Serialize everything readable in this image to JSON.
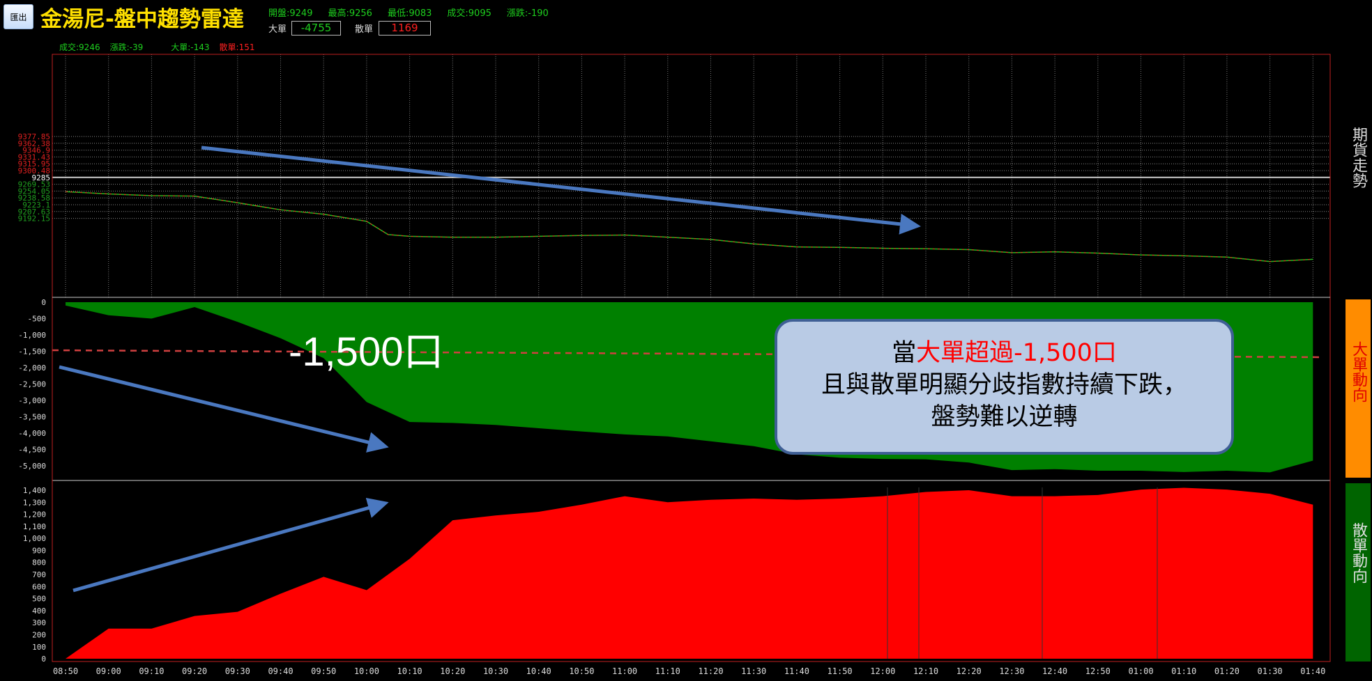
{
  "header": {
    "export_label": "匯出",
    "title": "金湯尼-盤中趨勢雷達",
    "stats": [
      "開盤:9249",
      "最高:9256",
      "最低:9083",
      "成交:9095",
      "漲跌:-190"
    ],
    "big_label": "大單",
    "big_value": "-4755",
    "retail_label": "散單",
    "retail_value": "1169"
  },
  "subheader": {
    "trade": "成交:9246",
    "change": "漲跌:-39",
    "big": "大單:-143",
    "retail": "散單:151"
  },
  "side_labels": {
    "price": "期貨走勢",
    "big": "大單動向",
    "retail": "散單動向"
  },
  "annotation": {
    "line1_prefix": "當",
    "line1_highlight": "大單超過-1,500口",
    "line2": "且與散單明顯分歧指數持續下跌，",
    "line3": "盤勢難以逆轉",
    "threshold_label": "-1,500口"
  },
  "colors": {
    "price_up": "#ff2020",
    "price_down": "#20c020",
    "big": "#008000",
    "retail": "#ff0000",
    "arrow": "#4a78c0",
    "threshold": "#d04040",
    "orange": "#ff8c00",
    "green_panel": "#006400"
  },
  "chart_data": [
    {
      "type": "line",
      "panel": "price",
      "ref_level": "9285",
      "tick_labels": [
        "9377.85",
        "9362.38",
        "9346.9",
        "9331.43",
        "9315.95",
        "9300.48",
        "9285",
        "9269.53",
        "9254.05",
        "9238.58",
        "9223.1",
        "9207.63",
        "9192.15"
      ],
      "x": [
        "08:50",
        "09:00",
        "09:10",
        "09:20",
        "09:30",
        "09:40",
        "09:50",
        "10:00",
        "10:05",
        "10:10",
        "10:20",
        "10:30",
        "10:40",
        "10:50",
        "11:00",
        "11:10",
        "11:20",
        "11:30",
        "11:40",
        "11:50",
        "12:00",
        "12:10",
        "12:20",
        "12:30",
        "12:40",
        "12:50",
        "01:00",
        "01:10",
        "01:20",
        "01:30",
        "01:40"
      ],
      "values": [
        9253,
        9248,
        9244,
        9243,
        9228,
        9212,
        9202,
        9186,
        9156,
        9152,
        9150,
        9150,
        9152,
        9154,
        9155,
        9150,
        9145,
        9135,
        9128,
        9127,
        9125,
        9124,
        9122,
        9115,
        9117,
        9114,
        9110,
        9108,
        9105,
        9095,
        9100
      ]
    },
    {
      "type": "area",
      "panel": "big",
      "tick_labels": [
        "0",
        "-500",
        "-1,000",
        "-1,500",
        "-2,000",
        "-2,500",
        "-3,000",
        "-3,500",
        "-4,000",
        "-4,500",
        "-5,000"
      ],
      "ylim": [
        -5300,
        0
      ],
      "threshold": -1500,
      "x": [
        "08:50",
        "09:00",
        "09:10",
        "09:20",
        "09:30",
        "09:40",
        "09:50",
        "10:00",
        "10:10",
        "10:20",
        "10:30",
        "10:40",
        "10:50",
        "11:00",
        "11:10",
        "11:20",
        "11:30",
        "11:40",
        "11:50",
        "12:00",
        "12:10",
        "12:20",
        "12:30",
        "12:40",
        "12:50",
        "01:00",
        "01:10",
        "01:20",
        "01:30",
        "01:40"
      ],
      "values": [
        -100,
        -400,
        -500,
        -150,
        -600,
        -1100,
        -1710,
        -3050,
        -3660,
        -3690,
        -3750,
        -3850,
        -3950,
        -4040,
        -4100,
        -4250,
        -4400,
        -4650,
        -4750,
        -4790,
        -4800,
        -4900,
        -5130,
        -5100,
        -5150,
        -5150,
        -5190,
        -5150,
        -5200,
        -4840
      ]
    },
    {
      "type": "area",
      "panel": "retail",
      "tick_labels": [
        "1,400",
        "1,300",
        "1,200",
        "1,100",
        "1,000",
        "900",
        "800",
        "700",
        "600",
        "500",
        "400",
        "300",
        "200",
        "100",
        "0"
      ],
      "ylim": [
        0,
        1400
      ],
      "x": [
        "08:50",
        "09:00",
        "09:10",
        "09:20",
        "09:30",
        "09:40",
        "09:50",
        "10:00",
        "10:10",
        "10:20",
        "10:30",
        "10:40",
        "10:50",
        "11:00",
        "11:10",
        "11:20",
        "11:30",
        "11:40",
        "11:50",
        "12:00",
        "12:10",
        "12:20",
        "12:30",
        "12:40",
        "12:50",
        "01:00",
        "01:10",
        "01:20",
        "01:30",
        "01:40"
      ],
      "values": [
        0,
        250,
        250,
        355,
        390,
        540,
        680,
        570,
        830,
        1150,
        1190,
        1220,
        1280,
        1350,
        1300,
        1320,
        1330,
        1320,
        1330,
        1350,
        1385,
        1400,
        1350,
        1350,
        1360,
        1405,
        1420,
        1405,
        1370,
        1280
      ]
    }
  ]
}
